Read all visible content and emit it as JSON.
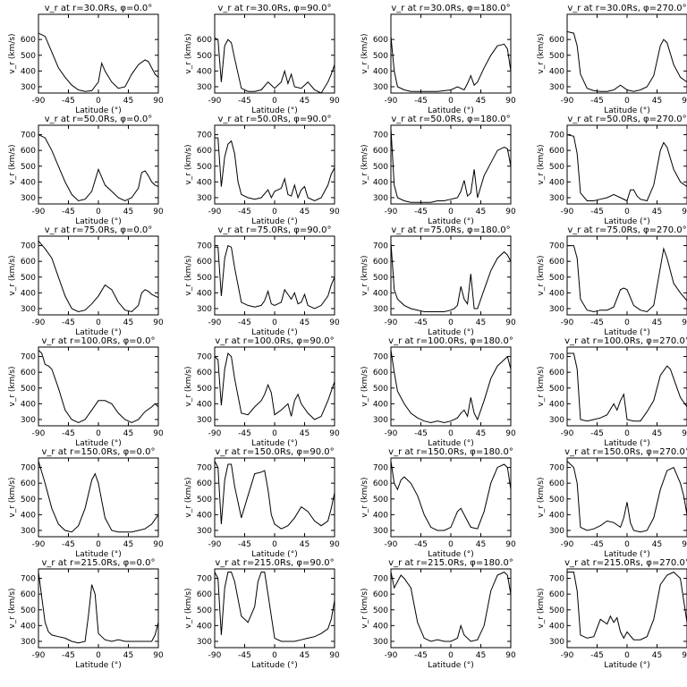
{
  "xlabel": "Latitude (°)",
  "ylabel": "v_r (km/s)",
  "xticks": [
    -90,
    -45,
    0,
    45,
    90
  ],
  "xlim": [
    -90,
    90
  ],
  "ylim": [
    260,
    760
  ],
  "yticks_default": [
    300,
    400,
    500,
    600,
    700
  ],
  "yticks_top_row": [
    300,
    400,
    500,
    600
  ],
  "chart_data": [
    {
      "type": "line",
      "title": "v_r at r=30.0Rs, φ=0.0°",
      "row": 0,
      "col": 0,
      "x": [
        -90,
        -80,
        -70,
        -60,
        -50,
        -40,
        -30,
        -20,
        -10,
        0,
        5,
        10,
        20,
        30,
        40,
        50,
        60,
        70,
        75,
        80,
        85,
        90
      ],
      "y": [
        640,
        620,
        520,
        420,
        360,
        310,
        280,
        270,
        275,
        330,
        450,
        400,
        330,
        290,
        300,
        380,
        440,
        470,
        460,
        420,
        380,
        360
      ]
    },
    {
      "type": "line",
      "title": "v_r at r=30.0Rs, φ=90.0°",
      "row": 0,
      "col": 1,
      "x": [
        -90,
        -85,
        -80,
        -75,
        -70,
        -65,
        -60,
        -50,
        -40,
        -30,
        -20,
        -10,
        0,
        10,
        15,
        20,
        25,
        30,
        40,
        50,
        60,
        70,
        80,
        85,
        90
      ],
      "y": [
        610,
        600,
        330,
        560,
        600,
        580,
        480,
        290,
        270,
        270,
        280,
        330,
        290,
        330,
        400,
        320,
        380,
        300,
        290,
        330,
        280,
        260,
        330,
        380,
        440
      ]
    },
    {
      "type": "line",
      "title": "v_r at r=30.0Rs, φ=180.0°",
      "row": 0,
      "col": 2,
      "x": [
        -90,
        -85,
        -80,
        -70,
        -60,
        -50,
        -40,
        -30,
        -20,
        -10,
        0,
        10,
        20,
        25,
        30,
        35,
        40,
        50,
        60,
        70,
        80,
        85,
        90
      ],
      "y": [
        620,
        400,
        300,
        280,
        270,
        270,
        270,
        270,
        270,
        275,
        280,
        300,
        280,
        320,
        370,
        310,
        330,
        420,
        500,
        560,
        570,
        540,
        400
      ]
    },
    {
      "type": "line",
      "title": "v_r at r=30.0Rs, φ=270.0°",
      "row": 0,
      "col": 3,
      "x": [
        -90,
        -80,
        -75,
        -70,
        -60,
        -50,
        -40,
        -30,
        -20,
        -10,
        0,
        10,
        20,
        30,
        40,
        50,
        55,
        60,
        70,
        80,
        90
      ],
      "y": [
        650,
        640,
        560,
        380,
        290,
        275,
        270,
        270,
        280,
        310,
        280,
        270,
        280,
        300,
        370,
        560,
        600,
        580,
        440,
        360,
        330
      ]
    },
    {
      "type": "line",
      "title": "v_r at r=50.0Rs, φ=0.0°",
      "row": 1,
      "col": 0,
      "x": [
        -90,
        -80,
        -70,
        -60,
        -50,
        -40,
        -30,
        -20,
        -10,
        0,
        10,
        20,
        30,
        40,
        50,
        60,
        65,
        70,
        75,
        80,
        85,
        90
      ],
      "y": [
        700,
        680,
        600,
        500,
        400,
        320,
        280,
        290,
        340,
        480,
        380,
        340,
        300,
        280,
        300,
        360,
        460,
        470,
        440,
        400,
        380,
        370
      ]
    },
    {
      "type": "line",
      "title": "v_r at r=50.0Rs, φ=90.0°",
      "row": 1,
      "col": 1,
      "x": [
        -90,
        -85,
        -80,
        -75,
        -70,
        -65,
        -60,
        -55,
        -50,
        -40,
        -30,
        -20,
        -10,
        -5,
        0,
        10,
        15,
        20,
        25,
        30,
        35,
        40,
        45,
        50,
        60,
        70,
        80,
        85,
        90
      ],
      "y": [
        680,
        680,
        370,
        560,
        640,
        660,
        580,
        400,
        320,
        300,
        290,
        300,
        350,
        300,
        340,
        360,
        420,
        320,
        310,
        380,
        300,
        350,
        370,
        300,
        280,
        300,
        380,
        450,
        490
      ]
    },
    {
      "type": "line",
      "title": "v_r at r=50.0Rs, φ=180.0°",
      "row": 1,
      "col": 2,
      "x": [
        -90,
        -85,
        -80,
        -70,
        -60,
        -50,
        -40,
        -30,
        -20,
        -10,
        0,
        10,
        15,
        20,
        25,
        30,
        35,
        40,
        50,
        60,
        70,
        80,
        85,
        90
      ],
      "y": [
        740,
        380,
        300,
        280,
        270,
        270,
        270,
        270,
        280,
        280,
        290,
        300,
        340,
        410,
        310,
        330,
        480,
        300,
        440,
        520,
        600,
        620,
        610,
        500
      ]
    },
    {
      "type": "line",
      "title": "v_r at r=50.0Rs, φ=270.0°",
      "row": 1,
      "col": 3,
      "x": [
        -90,
        -80,
        -75,
        -70,
        -60,
        -50,
        -40,
        -30,
        -20,
        -10,
        0,
        5,
        10,
        15,
        20,
        30,
        40,
        50,
        55,
        60,
        70,
        80,
        90
      ],
      "y": [
        700,
        690,
        580,
        330,
        280,
        280,
        290,
        300,
        320,
        300,
        280,
        350,
        350,
        310,
        290,
        280,
        380,
        600,
        650,
        620,
        480,
        400,
        370
      ]
    },
    {
      "type": "line",
      "title": "v_r at r=75.0Rs, φ=0.0°",
      "row": 2,
      "col": 0,
      "x": [
        -90,
        -80,
        -70,
        -60,
        -50,
        -40,
        -30,
        -20,
        -10,
        0,
        10,
        20,
        30,
        40,
        50,
        60,
        65,
        70,
        75,
        80,
        85,
        90
      ],
      "y": [
        730,
        680,
        620,
        500,
        380,
        300,
        280,
        290,
        330,
        380,
        450,
        420,
        340,
        290,
        280,
        320,
        400,
        420,
        410,
        390,
        380,
        370
      ]
    },
    {
      "type": "line",
      "title": "v_r at r=75.0Rs, φ=90.0°",
      "row": 2,
      "col": 1,
      "x": [
        -90,
        -85,
        -80,
        -75,
        -70,
        -65,
        -60,
        -50,
        -40,
        -30,
        -20,
        -15,
        -10,
        -5,
        0,
        10,
        15,
        20,
        25,
        30,
        35,
        40,
        45,
        50,
        60,
        70,
        80,
        85,
        90
      ],
      "y": [
        690,
        690,
        380,
        620,
        700,
        690,
        560,
        340,
        320,
        310,
        320,
        350,
        410,
        330,
        320,
        340,
        420,
        390,
        360,
        400,
        330,
        340,
        390,
        320,
        300,
        320,
        380,
        450,
        500
      ]
    },
    {
      "type": "line",
      "title": "v_r at r=75.0Rs, φ=180.0°",
      "row": 2,
      "col": 2,
      "x": [
        -90,
        -85,
        -80,
        -70,
        -60,
        -50,
        -40,
        -30,
        -20,
        -10,
        0,
        5,
        10,
        15,
        20,
        25,
        30,
        35,
        40,
        50,
        60,
        70,
        80,
        85,
        90
      ],
      "y": [
        720,
        420,
        360,
        320,
        300,
        290,
        280,
        280,
        280,
        280,
        290,
        300,
        320,
        440,
        360,
        330,
        520,
        300,
        300,
        420,
        540,
        620,
        660,
        640,
        600
      ]
    },
    {
      "type": "line",
      "title": "v_r at r=75.0Rs, φ=270.0°",
      "row": 2,
      "col": 3,
      "x": [
        -90,
        -80,
        -75,
        -70,
        -60,
        -50,
        -40,
        -30,
        -20,
        -10,
        -5,
        0,
        10,
        20,
        30,
        40,
        50,
        55,
        60,
        70,
        80,
        90
      ],
      "y": [
        700,
        700,
        620,
        360,
        290,
        280,
        290,
        290,
        310,
        420,
        430,
        420,
        320,
        290,
        280,
        320,
        560,
        680,
        620,
        460,
        400,
        350
      ]
    },
    {
      "type": "line",
      "title": "v_r at r=100.0Rs, φ=0.0°",
      "row": 3,
      "col": 0,
      "x": [
        -90,
        -85,
        -80,
        -75,
        -70,
        -60,
        -50,
        -40,
        -30,
        -20,
        -10,
        0,
        10,
        20,
        30,
        40,
        50,
        60,
        70,
        80,
        85,
        90
      ],
      "y": [
        740,
        720,
        650,
        640,
        620,
        500,
        360,
        300,
        280,
        300,
        360,
        420,
        420,
        400,
        340,
        300,
        280,
        300,
        350,
        380,
        400,
        380
      ]
    },
    {
      "type": "line",
      "title": "v_r at r=100.0Rs, φ=90.0°",
      "row": 3,
      "col": 1,
      "x": [
        -90,
        -85,
        -80,
        -75,
        -70,
        -65,
        -60,
        -50,
        -40,
        -30,
        -20,
        -15,
        -10,
        -5,
        0,
        10,
        20,
        25,
        30,
        35,
        40,
        50,
        60,
        70,
        80,
        85,
        90
      ],
      "y": [
        700,
        680,
        390,
        620,
        720,
        700,
        560,
        340,
        330,
        380,
        420,
        460,
        520,
        470,
        330,
        360,
        400,
        320,
        420,
        460,
        400,
        340,
        300,
        320,
        420,
        480,
        540
      ]
    },
    {
      "type": "line",
      "title": "v_r at r=100.0Rs, φ=180.0°",
      "row": 3,
      "col": 2,
      "x": [
        -90,
        -85,
        -80,
        -70,
        -60,
        -50,
        -40,
        -30,
        -20,
        -10,
        0,
        10,
        15,
        20,
        25,
        30,
        35,
        40,
        50,
        60,
        70,
        80,
        85,
        90
      ],
      "y": [
        740,
        600,
        480,
        400,
        340,
        310,
        290,
        280,
        290,
        280,
        290,
        310,
        340,
        360,
        320,
        440,
        340,
        300,
        420,
        560,
        640,
        680,
        700,
        620
      ]
    },
    {
      "type": "line",
      "title": "v_r at r=100.0Rs, φ=270.0°",
      "row": 3,
      "col": 3,
      "x": [
        -90,
        -80,
        -75,
        -70,
        -60,
        -50,
        -40,
        -30,
        -20,
        -15,
        -10,
        -5,
        0,
        10,
        20,
        30,
        40,
        50,
        60,
        65,
        70,
        80,
        90
      ],
      "y": [
        720,
        720,
        620,
        300,
        290,
        300,
        310,
        330,
        400,
        360,
        420,
        460,
        300,
        290,
        290,
        350,
        420,
        580,
        640,
        620,
        560,
        440,
        380
      ]
    },
    {
      "type": "line",
      "title": "v_r at r=150.0Rs, φ=0.0°",
      "row": 4,
      "col": 0,
      "x": [
        -90,
        -80,
        -70,
        -60,
        -50,
        -40,
        -30,
        -20,
        -10,
        -5,
        0,
        10,
        20,
        30,
        40,
        50,
        60,
        70,
        80,
        90
      ],
      "y": [
        740,
        600,
        440,
        340,
        300,
        290,
        330,
        440,
        620,
        660,
        600,
        380,
        300,
        290,
        290,
        290,
        300,
        310,
        340,
        400
      ]
    },
    {
      "type": "line",
      "title": "v_r at r=150.0Rs, φ=90.0°",
      "row": 4,
      "col": 1,
      "x": [
        -90,
        -85,
        -80,
        -75,
        -70,
        -65,
        -60,
        -50,
        -40,
        -30,
        -20,
        -15,
        -10,
        -5,
        0,
        10,
        20,
        30,
        40,
        50,
        60,
        70,
        80,
        85,
        90
      ],
      "y": [
        740,
        700,
        340,
        620,
        720,
        720,
        580,
        380,
        520,
        660,
        670,
        680,
        560,
        400,
        340,
        310,
        330,
        380,
        450,
        420,
        360,
        330,
        360,
        440,
        540
      ]
    },
    {
      "type": "line",
      "title": "v_r at r=150.0Rs, φ=180.0°",
      "row": 4,
      "col": 2,
      "x": [
        -90,
        -85,
        -80,
        -75,
        -70,
        -60,
        -50,
        -40,
        -30,
        -20,
        -10,
        0,
        10,
        15,
        20,
        30,
        40,
        50,
        60,
        70,
        80,
        85,
        90
      ],
      "y": [
        740,
        600,
        560,
        620,
        640,
        600,
        520,
        400,
        320,
        300,
        300,
        320,
        420,
        440,
        400,
        320,
        310,
        420,
        600,
        700,
        720,
        700,
        560
      ]
    },
    {
      "type": "line",
      "title": "v_r at r=150.0Rs, φ=270.0°",
      "row": 4,
      "col": 3,
      "x": [
        -90,
        -80,
        -75,
        -70,
        -60,
        -50,
        -40,
        -30,
        -20,
        -10,
        -5,
        0,
        5,
        10,
        20,
        30,
        40,
        50,
        60,
        70,
        80,
        85,
        90
      ],
      "y": [
        740,
        700,
        600,
        320,
        300,
        310,
        330,
        360,
        350,
        320,
        380,
        480,
        350,
        300,
        290,
        300,
        380,
        560,
        680,
        700,
        600,
        520,
        400
      ]
    },
    {
      "type": "line",
      "title": "v_r at r=215.0Rs, φ=0.0°",
      "row": 5,
      "col": 0,
      "x": [
        -90,
        -85,
        -80,
        -75,
        -70,
        -60,
        -50,
        -40,
        -30,
        -20,
        -15,
        -10,
        -5,
        0,
        10,
        20,
        30,
        40,
        50,
        60,
        70,
        80,
        85,
        90
      ],
      "y": [
        740,
        580,
        420,
        360,
        340,
        330,
        320,
        300,
        290,
        300,
        460,
        660,
        600,
        350,
        310,
        300,
        310,
        300,
        300,
        300,
        300,
        300,
        340,
        420
      ]
    },
    {
      "type": "line",
      "title": "v_r at r=215.0Rs, φ=90.0°",
      "row": 5,
      "col": 1,
      "x": [
        -90,
        -85,
        -80,
        -75,
        -70,
        -65,
        -60,
        -50,
        -40,
        -30,
        -25,
        -20,
        -15,
        -10,
        0,
        10,
        20,
        30,
        40,
        50,
        60,
        70,
        80,
        85,
        90
      ],
      "y": [
        740,
        700,
        340,
        640,
        740,
        740,
        680,
        460,
        420,
        520,
        680,
        740,
        740,
        600,
        320,
        300,
        300,
        300,
        310,
        320,
        330,
        350,
        380,
        440,
        560
      ]
    },
    {
      "type": "line",
      "title": "v_r at r=215.0Rs, φ=180.0°",
      "row": 5,
      "col": 2,
      "x": [
        -90,
        -85,
        -80,
        -75,
        -70,
        -60,
        -50,
        -40,
        -30,
        -20,
        -10,
        0,
        10,
        15,
        20,
        30,
        40,
        50,
        60,
        70,
        80,
        85,
        90
      ],
      "y": [
        740,
        640,
        680,
        720,
        700,
        640,
        420,
        320,
        300,
        310,
        300,
        300,
        320,
        400,
        340,
        300,
        310,
        400,
        620,
        720,
        740,
        720,
        600
      ]
    },
    {
      "type": "line",
      "title": "v_r at r=215.0Rs, φ=270.0°",
      "row": 5,
      "col": 3,
      "x": [
        -90,
        -80,
        -75,
        -70,
        -60,
        -50,
        -40,
        -30,
        -25,
        -20,
        -15,
        -10,
        -5,
        0,
        10,
        20,
        30,
        40,
        50,
        60,
        70,
        80,
        90
      ],
      "y": [
        740,
        740,
        620,
        340,
        320,
        330,
        440,
        410,
        460,
        420,
        450,
        360,
        320,
        360,
        310,
        310,
        330,
        440,
        660,
        720,
        740,
        700,
        420
      ]
    }
  ]
}
